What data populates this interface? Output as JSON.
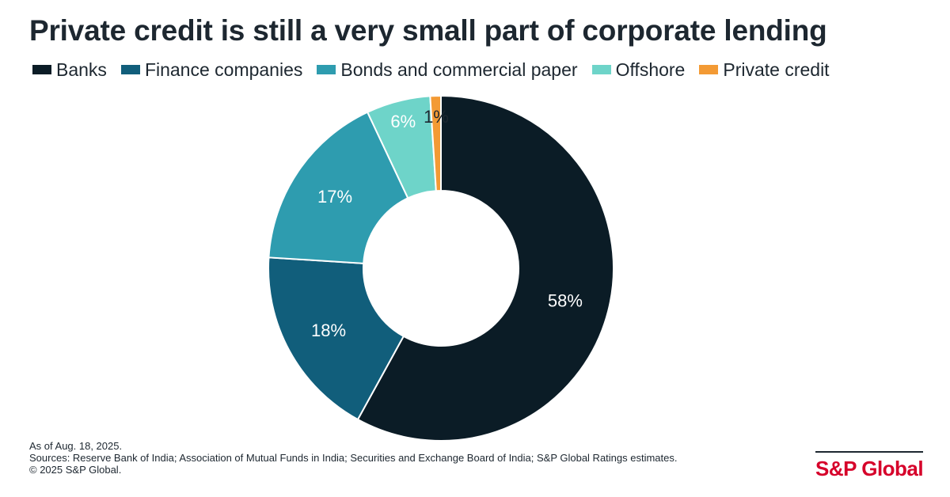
{
  "chart_data": {
    "type": "pie",
    "title": "Private credit is still a very small part of corporate lending",
    "donut": true,
    "categories": [
      "Banks",
      "Finance companies",
      "Bonds and commercial paper",
      "Offshore",
      "Private credit"
    ],
    "values": [
      58,
      18,
      17,
      6,
      1
    ],
    "labels": [
      "58%",
      "18%",
      "17%",
      "6%",
      "1%"
    ],
    "colors": [
      "#0b1c26",
      "#115e7b",
      "#2e9caf",
      "#6ed4c9",
      "#f39a34"
    ],
    "label_colors": [
      "#ffffff",
      "#ffffff",
      "#ffffff",
      "#ffffff",
      "#1d2730"
    ],
    "legend_position": "top"
  },
  "footer": {
    "as_of": "As of Aug. 18, 2025.",
    "sources": "Sources: Reserve Bank of India; Association of Mutual Funds in India; Securities and Exchange Board of India; S&P Global Ratings estimates.",
    "copyright": "© 2025 S&P Global."
  },
  "brand": {
    "logo_text": "S&P Global"
  }
}
